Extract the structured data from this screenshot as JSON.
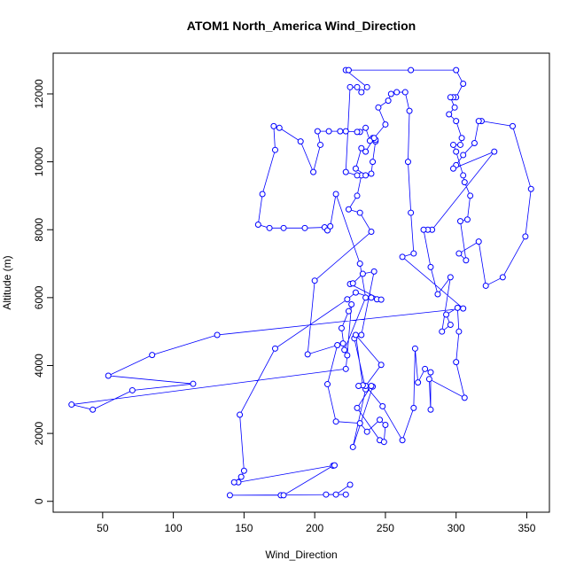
{
  "chart_data": {
    "type": "line",
    "title": "ATOM1 North_America Wind_Direction",
    "x_label": "Wind_Direction",
    "y_label": "Altitude (m)",
    "xlim": [
      15,
      366
    ],
    "ylim": [
      -320,
      13200
    ],
    "xticks": [
      50,
      100,
      150,
      200,
      250,
      300,
      350
    ],
    "yticks": [
      0,
      2000,
      4000,
      6000,
      8000,
      10000,
      12000
    ],
    "series": [
      {
        "color": "#0000ff",
        "x": [
          225,
          215,
          208,
          222,
          140,
          176,
          178,
          213,
          214,
          146,
          143,
          148,
          150,
          147,
          172,
          223,
          229,
          240,
          244,
          247,
          225,
          227,
          234,
          242,
          233,
          228,
          236,
          227,
          241,
          240,
          230,
          246,
          249,
          250,
          246,
          237,
          232,
          215,
          209,
          216,
          220,
          195,
          200,
          240,
          232,
          224,
          230,
          233,
          240,
          241,
          243,
          241,
          243,
          239,
          236,
          232,
          230,
          222,
          218,
          210,
          202,
          204,
          199,
          190,
          175,
          171,
          172,
          163,
          160,
          168,
          178,
          193,
          207,
          209,
          211,
          215,
          232,
          236,
          221,
          219,
          224,
          226,
          223,
          222,
          28,
          43,
          71,
          114,
          54,
          85,
          131,
          305,
          262,
          270,
          268,
          266,
          267,
          264,
          258,
          254,
          252,
          245,
          250,
          242,
          236,
          233,
          229,
          236,
          230,
          222,
          225,
          230,
          233,
          237,
          222,
          224,
          268,
          300,
          305,
          300,
          298,
          296,
          299,
          295,
          300,
          304,
          303,
          298,
          300,
          305,
          306,
          310,
          308,
          303,
          307,
          302,
          316,
          321,
          333,
          349,
          353,
          340,
          318,
          316,
          313,
          305,
          300,
          298,
          327,
          283,
          280,
          277,
          282,
          287,
          296,
          290,
          296,
          293,
          301,
          302,
          300,
          306,
          281,
          282,
          282,
          278,
          273,
          271,
          270,
          262,
          248,
          236,
          247,
          229,
          234,
          231
        ],
        "values": [
          490,
          200,
          200,
          200,
          180,
          180,
          180,
          1050,
          1060,
          560,
          560,
          720,
          900,
          2550,
          4500,
          5950,
          6150,
          6000,
          5950,
          5940,
          6400,
          6420,
          6700,
          6770,
          4900,
          4800,
          3300,
          1600,
          3380,
          3400,
          2750,
          1800,
          1750,
          2250,
          2400,
          2050,
          2300,
          2350,
          3450,
          4600,
          4650,
          4330,
          6500,
          7940,
          8500,
          8600,
          9000,
          9600,
          9650,
          10000,
          10600,
          10700,
          10650,
          10620,
          11000,
          10880,
          10880,
          10900,
          10900,
          10900,
          10900,
          10500,
          9700,
          10600,
          11000,
          11050,
          10350,
          9050,
          8150,
          8050,
          8050,
          8050,
          8070,
          7980,
          8100,
          9050,
          7000,
          6000,
          4460,
          5100,
          5600,
          5800,
          4300,
          3900,
          2850,
          2700,
          3270,
          3460,
          3700,
          4310,
          4900,
          5680,
          7200,
          7300,
          8500,
          10000,
          11500,
          12050,
          12050,
          12000,
          11800,
          11600,
          11100,
          10700,
          10300,
          10400,
          9800,
          9600,
          9600,
          9700,
          12200,
          12200,
          12050,
          12200,
          12700,
          12700,
          12700,
          12700,
          12300,
          11900,
          11900,
          11900,
          11600,
          11400,
          11200,
          10700,
          10500,
          10500,
          10300,
          9600,
          9400,
          9000,
          8300,
          8250,
          7100,
          7300,
          7650,
          6350,
          6600,
          7800,
          9200,
          11050,
          11200,
          11200,
          10550,
          10200,
          9900,
          9800,
          10300,
          8000,
          8000,
          8000,
          6900,
          6100,
          6600,
          5000,
          5200,
          5500,
          5700,
          5000,
          4100,
          3050,
          3600,
          2700,
          3800,
          3900,
          3500,
          4500,
          2750,
          1800,
          2800,
          3400,
          4020,
          4900,
          3420,
          3400
        ]
      }
    ]
  }
}
